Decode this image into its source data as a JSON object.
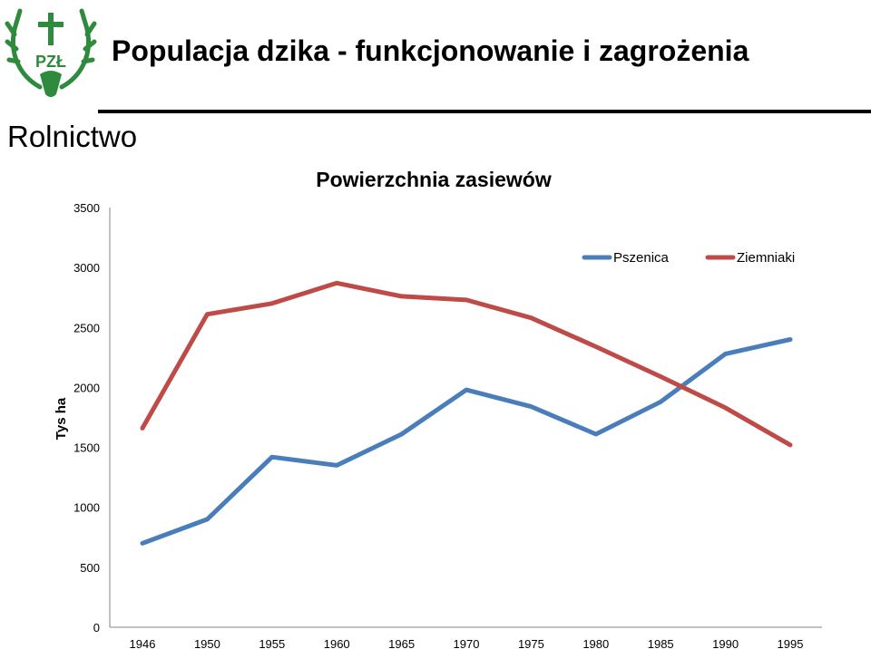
{
  "header": {
    "title": "Populacja dzika - funkcjonowanie i zagrożenia",
    "logo_text": "PZŁ"
  },
  "section": {
    "label": "Rolnictwo"
  },
  "colors": {
    "logo_green": "#2e8b3e",
    "pszenica": "#4a7ebb",
    "ziemniaki": "#be4b48",
    "axis": "#868686"
  },
  "chart_data": {
    "type": "line",
    "title": "Powierzchnia zasiewów",
    "xlabel": "",
    "ylabel": "Tys ha",
    "categories": [
      "1946",
      "1950",
      "1955",
      "1960",
      "1965",
      "1970",
      "1975",
      "1980",
      "1985",
      "1990",
      "1995"
    ],
    "ylim": [
      0,
      3500
    ],
    "yticks": [
      "0",
      "500",
      "1000",
      "1500",
      "2000",
      "2500",
      "3000",
      "3500"
    ],
    "grid": false,
    "legend_position": "top-right",
    "series": [
      {
        "name": "Pszenica",
        "color": "#4a7ebb",
        "values": [
          700,
          900,
          1420,
          1350,
          1610,
          1980,
          1840,
          1610,
          1880,
          2280,
          2400
        ]
      },
      {
        "name": "Ziemniaki",
        "color": "#be4b48",
        "values": [
          1660,
          2610,
          2700,
          2870,
          2760,
          2730,
          2580,
          2340,
          2090,
          1830,
          1520
        ]
      }
    ]
  }
}
